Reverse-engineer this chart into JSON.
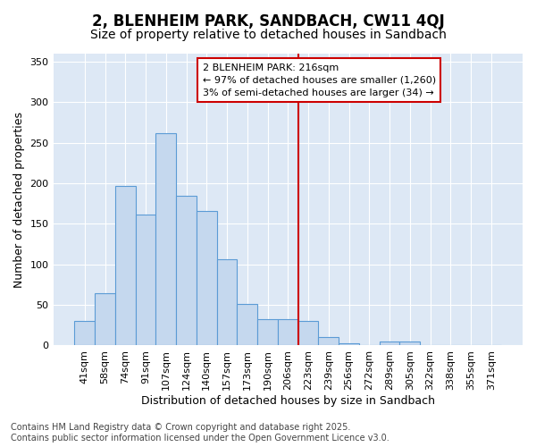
{
  "title": "2, BLENHEIM PARK, SANDBACH, CW11 4QJ",
  "subtitle": "Size of property relative to detached houses in Sandbach",
  "xlabel": "Distribution of detached houses by size in Sandbach",
  "ylabel": "Number of detached properties",
  "categories": [
    "41sqm",
    "58sqm",
    "74sqm",
    "91sqm",
    "107sqm",
    "124sqm",
    "140sqm",
    "157sqm",
    "173sqm",
    "190sqm",
    "206sqm",
    "223sqm",
    "239sqm",
    "256sqm",
    "272sqm",
    "289sqm",
    "305sqm",
    "322sqm",
    "338sqm",
    "355sqm",
    "371sqm"
  ],
  "values": [
    30,
    65,
    197,
    162,
    262,
    185,
    166,
    106,
    51,
    33,
    33,
    30,
    10,
    3,
    0,
    5,
    5,
    0,
    0,
    0,
    1
  ],
  "bar_color": "#c5d8ee",
  "bar_edge_color": "#5b9bd5",
  "vline_color": "#cc0000",
  "vline_x_index": 11,
  "annotation_title": "2 BLENHEIM PARK: 216sqm",
  "annotation_line1": "← 97% of detached houses are smaller (1,260)",
  "annotation_line2": "3% of semi-detached houses are larger (34) →",
  "annotation_box_edgecolor": "#cc0000",
  "ylim": [
    0,
    360
  ],
  "yticks": [
    0,
    50,
    100,
    150,
    200,
    250,
    300,
    350
  ],
  "footer": "Contains HM Land Registry data © Crown copyright and database right 2025.\nContains public sector information licensed under the Open Government Licence v3.0.",
  "bg_color": "#ffffff",
  "plot_bg_color": "#dde8f5",
  "grid_color": "#ffffff",
  "title_fontsize": 12,
  "subtitle_fontsize": 10,
  "axis_label_fontsize": 9,
  "tick_fontsize": 8,
  "annotation_fontsize": 8,
  "footer_fontsize": 7
}
